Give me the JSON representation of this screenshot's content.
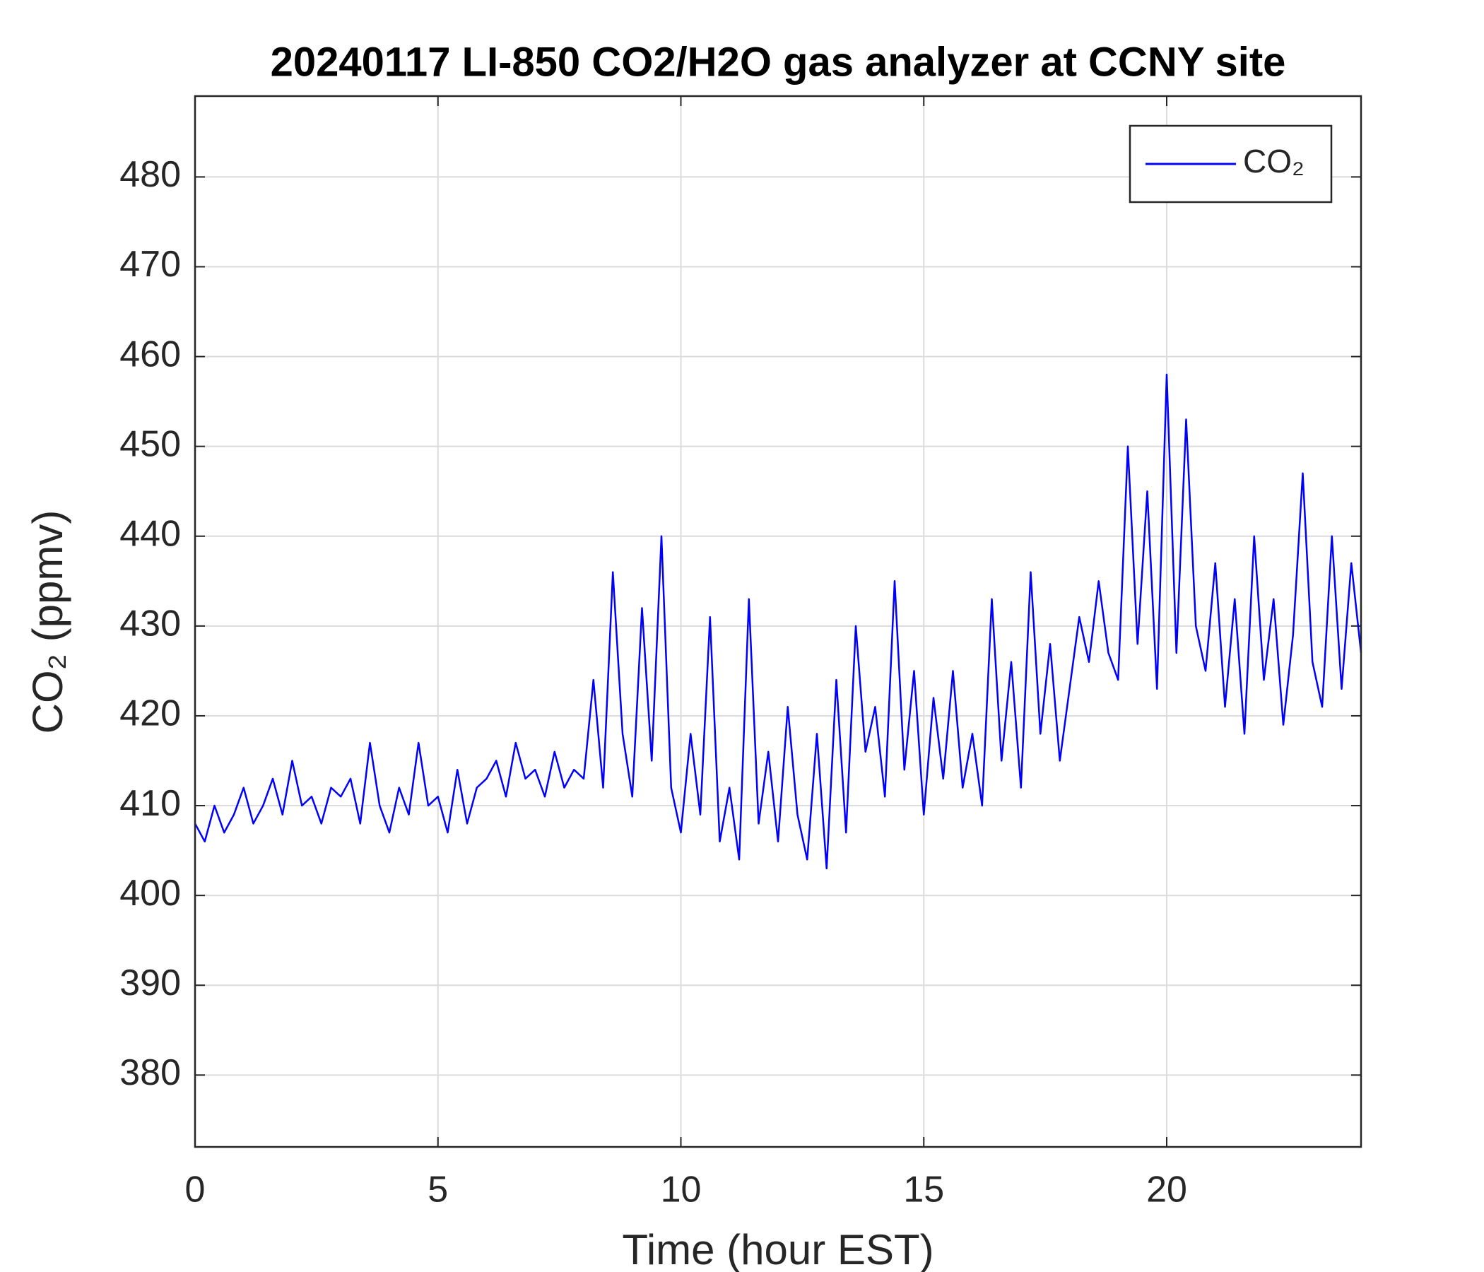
{
  "chart_data": {
    "type": "line",
    "title": "20240117 LI-850 CO2/H2O gas analyzer at CCNY site",
    "xlabel": "Time (hour EST)",
    "ylabel": "CO₂ (ppmv)",
    "xlim": [
      0,
      24
    ],
    "xticks": [
      0,
      5,
      10,
      15,
      20
    ],
    "ylim": [
      372,
      489
    ],
    "yticks": [
      380,
      390,
      400,
      410,
      420,
      430,
      440,
      450,
      460,
      470,
      480
    ],
    "grid": true,
    "legend": "upper right",
    "x": [
      0,
      0.2,
      0.4,
      0.6,
      0.8,
      1,
      1.2,
      1.4,
      1.6,
      1.8,
      2,
      2.2,
      2.4,
      2.6,
      2.8,
      3,
      3.2,
      3.4,
      3.6,
      3.8,
      4,
      4.2,
      4.4,
      4.6,
      4.8,
      5,
      5.2,
      5.4,
      5.6,
      5.8,
      6,
      6.2,
      6.4,
      6.6,
      6.8,
      7,
      7.2,
      7.4,
      7.6,
      7.8,
      8,
      8.2,
      8.4,
      8.6,
      8.8,
      9,
      9.2,
      9.4,
      9.6,
      9.8,
      10,
      10.2,
      10.4,
      10.6,
      10.8,
      11,
      11.2,
      11.4,
      11.6,
      11.8,
      12,
      12.2,
      12.4,
      12.6,
      12.8,
      13,
      13.2,
      13.4,
      13.6,
      13.8,
      14,
      14.2,
      14.4,
      14.6,
      14.8,
      15,
      15.2,
      15.4,
      15.6,
      15.8,
      16,
      16.2,
      16.4,
      16.6,
      16.8,
      17,
      17.2,
      17.4,
      17.6,
      17.8,
      18,
      18.2,
      18.4,
      18.6,
      18.8,
      19,
      19.2,
      19.4,
      19.6,
      19.8,
      20,
      20.2,
      20.4,
      20.6,
      20.8,
      21,
      21.2,
      21.4,
      21.6,
      21.8,
      22,
      22.2,
      22.4,
      22.6,
      22.8,
      23,
      23.2,
      23.4,
      23.6,
      23.8,
      24
    ],
    "series": [
      {
        "name": "CO₂",
        "color": "#0000ff",
        "values": [
          408,
          406,
          410,
          407,
          409,
          412,
          408,
          410,
          413,
          409,
          415,
          410,
          411,
          408,
          412,
          411,
          413,
          408,
          417,
          410,
          407,
          412,
          409,
          417,
          410,
          411,
          407,
          414,
          408,
          412,
          413,
          415,
          411,
          417,
          413,
          414,
          411,
          416,
          412,
          414,
          413,
          424,
          412,
          436,
          418,
          411,
          432,
          415,
          440,
          412,
          407,
          418,
          409,
          431,
          406,
          412,
          404,
          433,
          408,
          416,
          406,
          421,
          409,
          404,
          418,
          403,
          424,
          407,
          430,
          416,
          421,
          411,
          435,
          414,
          425,
          409,
          422,
          413,
          425,
          412,
          418,
          410,
          433,
          415,
          426,
          412,
          436,
          418,
          428,
          415,
          423,
          431,
          426,
          435,
          427,
          424,
          450,
          428,
          445,
          423,
          458,
          427,
          453,
          430,
          425,
          437,
          421,
          433,
          418,
          440,
          424,
          433,
          419,
          429,
          447,
          426,
          421,
          440,
          423,
          437,
          427
        ]
      }
    ]
  }
}
